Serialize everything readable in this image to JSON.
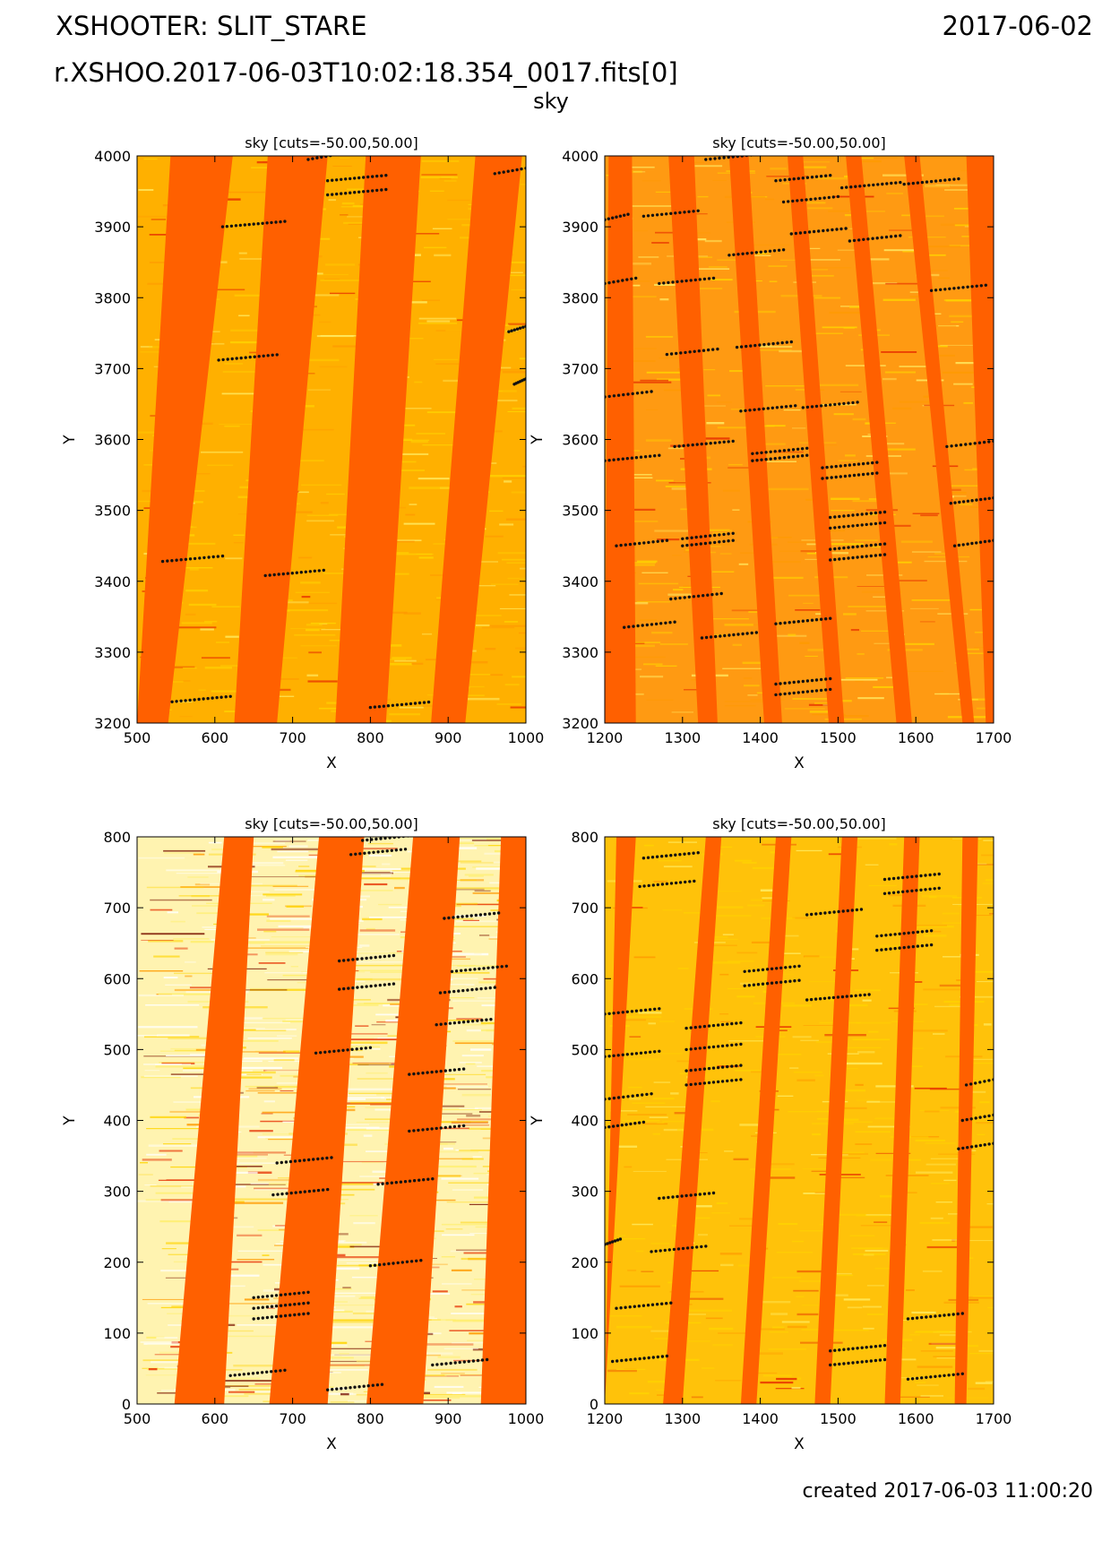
{
  "header": {
    "instrument": "XSHOOTER: SLIT_STARE",
    "date": "2017-06-02",
    "filename": "r.XSHOO.2017-06-03T10:02:18.354_0017.fits[0]",
    "subtitle": "sky"
  },
  "footer": {
    "created": "created 2017-06-03 11:00:20"
  },
  "colors": {
    "order_band": "#ff6000",
    "bg_top": "#ffb000",
    "bg_top_right": "#ff9a12",
    "bg_bottom_left": "#fff3b0",
    "bg_bottom_right": "#ffc20a",
    "line_dots": "#111111",
    "noise": [
      "#ffd400",
      "#ffee66",
      "#ff9a00",
      "#e62e00",
      "#ffffff"
    ]
  },
  "chart_data": [
    {
      "type": "heatmap",
      "title": "sky [cuts=-50.00,50.00]",
      "xlabel": "X",
      "ylabel": "Y",
      "xlim": [
        500,
        1000
      ],
      "ylim": [
        3200,
        4000
      ],
      "xticks": [
        "500",
        "600",
        "700",
        "800",
        "900",
        "1000"
      ],
      "yticks": [
        "3200",
        "3300",
        "3400",
        "3500",
        "3600",
        "3700",
        "3800",
        "3900",
        "4000"
      ],
      "cuts": [
        -50.0,
        50.0
      ],
      "order_bands": [
        {
          "x_top": [
            543,
            623
          ],
          "x_bottom": [
            500,
            540
          ]
        },
        {
          "x_top": [
            668,
            745
          ],
          "x_bottom": [
            625,
            680
          ]
        },
        {
          "x_top": [
            794,
            865
          ],
          "x_bottom": [
            755,
            820
          ]
        },
        {
          "x_top": [
            935,
            995
          ],
          "x_bottom": [
            878,
            922
          ]
        }
      ],
      "lines": [
        {
          "y": 3230,
          "x": [
            545,
            620
          ]
        },
        {
          "y": 3428,
          "x": [
            533,
            610
          ]
        },
        {
          "y": 3408,
          "x": [
            665,
            740
          ]
        },
        {
          "y": 3222,
          "x": [
            800,
            875
          ]
        },
        {
          "y": 3712,
          "x": [
            605,
            680
          ]
        },
        {
          "y": 3900,
          "x": [
            610,
            690
          ]
        },
        {
          "y": 3945,
          "x": [
            745,
            820
          ]
        },
        {
          "y": 3965,
          "x": [
            745,
            820
          ]
        },
        {
          "y": 3995,
          "x": [
            720,
            760
          ]
        },
        {
          "y": 3975,
          "x": [
            960,
            1000
          ]
        },
        {
          "y": 3752,
          "x": [
            978,
            1000
          ]
        },
        {
          "y": 3678,
          "x": [
            985,
            1000
          ]
        }
      ]
    },
    {
      "type": "heatmap",
      "title": "sky [cuts=-50.00,50.00]",
      "xlabel": "X",
      "ylabel": "Y",
      "xlim": [
        1200,
        1700
      ],
      "ylim": [
        3200,
        4000
      ],
      "xticks": [
        "1200",
        "1300",
        "1400",
        "1500",
        "1600",
        "1700"
      ],
      "yticks": [
        "3200",
        "3300",
        "3400",
        "3500",
        "3600",
        "3700",
        "3800",
        "3900",
        "4000"
      ],
      "cuts": [
        -50.0,
        50.0
      ],
      "order_bands": [
        {
          "x_top": [
            1205,
            1235
          ],
          "x_bottom": [
            1200,
            1240
          ]
        },
        {
          "x_top": [
            1282,
            1315
          ],
          "x_bottom": [
            1320,
            1345
          ]
        },
        {
          "x_top": [
            1360,
            1385
          ],
          "x_bottom": [
            1405,
            1428
          ]
        },
        {
          "x_top": [
            1435,
            1455
          ],
          "x_bottom": [
            1488,
            1508
          ]
        },
        {
          "x_top": [
            1510,
            1530
          ],
          "x_bottom": [
            1575,
            1595
          ]
        },
        {
          "x_top": [
            1585,
            1605
          ],
          "x_bottom": [
            1660,
            1675
          ]
        },
        {
          "x_top": [
            1665,
            1700
          ],
          "x_bottom": [
            1690,
            1700
          ]
        }
      ],
      "lines": [
        {
          "y": 3910,
          "x": [
            1200,
            1230
          ]
        },
        {
          "y": 3915,
          "x": [
            1250,
            1320
          ]
        },
        {
          "y": 3995,
          "x": [
            1330,
            1400
          ]
        },
        {
          "y": 3965,
          "x": [
            1420,
            1490
          ]
        },
        {
          "y": 3935,
          "x": [
            1430,
            1500
          ]
        },
        {
          "y": 3955,
          "x": [
            1505,
            1580
          ]
        },
        {
          "y": 3890,
          "x": [
            1440,
            1510
          ]
        },
        {
          "y": 3880,
          "x": [
            1515,
            1580
          ]
        },
        {
          "y": 3960,
          "x": [
            1585,
            1655
          ]
        },
        {
          "y": 3820,
          "x": [
            1200,
            1240
          ]
        },
        {
          "y": 3820,
          "x": [
            1270,
            1340
          ]
        },
        {
          "y": 3860,
          "x": [
            1360,
            1430
          ]
        },
        {
          "y": 3810,
          "x": [
            1620,
            1690
          ]
        },
        {
          "y": 3730,
          "x": [
            1370,
            1440
          ]
        },
        {
          "y": 3720,
          "x": [
            1280,
            1345
          ]
        },
        {
          "y": 3660,
          "x": [
            1200,
            1260
          ]
        },
        {
          "y": 3640,
          "x": [
            1375,
            1445
          ]
        },
        {
          "y": 3645,
          "x": [
            1455,
            1525
          ]
        },
        {
          "y": 3590,
          "x": [
            1290,
            1365
          ]
        },
        {
          "y": 3570,
          "x": [
            1200,
            1270
          ]
        },
        {
          "y": 3580,
          "x": [
            1390,
            1460
          ]
        },
        {
          "y": 3570,
          "x": [
            1390,
            1460
          ]
        },
        {
          "y": 3560,
          "x": [
            1480,
            1550
          ]
        },
        {
          "y": 3545,
          "x": [
            1480,
            1550
          ]
        },
        {
          "y": 3590,
          "x": [
            1640,
            1700
          ]
        },
        {
          "y": 3510,
          "x": [
            1645,
            1700
          ]
        },
        {
          "y": 3460,
          "x": [
            1300,
            1365
          ]
        },
        {
          "y": 3450,
          "x": [
            1300,
            1365
          ]
        },
        {
          "y": 3450,
          "x": [
            1215,
            1280
          ]
        },
        {
          "y": 3490,
          "x": [
            1490,
            1560
          ]
        },
        {
          "y": 3475,
          "x": [
            1490,
            1560
          ]
        },
        {
          "y": 3445,
          "x": [
            1490,
            1560
          ]
        },
        {
          "y": 3430,
          "x": [
            1490,
            1560
          ]
        },
        {
          "y": 3450,
          "x": [
            1650,
            1700
          ]
        },
        {
          "y": 3375,
          "x": [
            1285,
            1350
          ]
        },
        {
          "y": 3335,
          "x": [
            1225,
            1290
          ]
        },
        {
          "y": 3320,
          "x": [
            1325,
            1395
          ]
        },
        {
          "y": 3340,
          "x": [
            1420,
            1490
          ]
        },
        {
          "y": 3255,
          "x": [
            1420,
            1490
          ]
        },
        {
          "y": 3240,
          "x": [
            1420,
            1490
          ]
        }
      ]
    },
    {
      "type": "heatmap",
      "title": "sky [cuts=-50.00,50.00]",
      "xlabel": "X",
      "ylabel": "Y",
      "xlim": [
        500,
        1000
      ],
      "ylim": [
        0,
        800
      ],
      "xticks": [
        "500",
        "600",
        "700",
        "800",
        "900",
        "1000"
      ],
      "yticks": [
        "0",
        "100",
        "200",
        "300",
        "400",
        "500",
        "600",
        "700",
        "800"
      ],
      "cuts": [
        -50.0,
        50.0
      ],
      "order_bands": [
        {
          "x_top": [
            612,
            650
          ],
          "x_bottom": [
            548,
            612
          ]
        },
        {
          "x_top": [
            734,
            792
          ],
          "x_bottom": [
            670,
            745
          ]
        },
        {
          "x_top": [
            855,
            915
          ],
          "x_bottom": [
            795,
            868
          ]
        },
        {
          "x_top": [
            968,
            1000
          ],
          "x_bottom": [
            942,
            1000
          ]
        }
      ],
      "lines": [
        {
          "y": 795,
          "x": [
            790,
            860
          ]
        },
        {
          "y": 775,
          "x": [
            775,
            845
          ]
        },
        {
          "y": 685,
          "x": [
            895,
            965
          ]
        },
        {
          "y": 625,
          "x": [
            760,
            830
          ]
        },
        {
          "y": 610,
          "x": [
            905,
            975
          ]
        },
        {
          "y": 585,
          "x": [
            760,
            830
          ]
        },
        {
          "y": 580,
          "x": [
            890,
            960
          ]
        },
        {
          "y": 535,
          "x": [
            885,
            955
          ]
        },
        {
          "y": 495,
          "x": [
            730,
            800
          ]
        },
        {
          "y": 465,
          "x": [
            850,
            920
          ]
        },
        {
          "y": 385,
          "x": [
            850,
            920
          ]
        },
        {
          "y": 340,
          "x": [
            680,
            750
          ]
        },
        {
          "y": 310,
          "x": [
            810,
            880
          ]
        },
        {
          "y": 295,
          "x": [
            675,
            745
          ]
        },
        {
          "y": 195,
          "x": [
            800,
            865
          ]
        },
        {
          "y": 150,
          "x": [
            650,
            720
          ]
        },
        {
          "y": 135,
          "x": [
            650,
            720
          ]
        },
        {
          "y": 120,
          "x": [
            650,
            720
          ]
        },
        {
          "y": 55,
          "x": [
            880,
            950
          ]
        },
        {
          "y": 40,
          "x": [
            620,
            690
          ]
        },
        {
          "y": 20,
          "x": [
            745,
            815
          ]
        }
      ]
    },
    {
      "type": "heatmap",
      "title": "sky [cuts=-50.00,50.00]",
      "xlabel": "X",
      "ylabel": "Y",
      "xlim": [
        1200,
        1700
      ],
      "ylim": [
        0,
        800
      ],
      "xticks": [
        "1200",
        "1300",
        "1400",
        "1500",
        "1600",
        "1700"
      ],
      "yticks": [
        "0",
        "100",
        "200",
        "300",
        "400",
        "500",
        "600",
        "700",
        "800"
      ],
      "cuts": [
        -50.0,
        50.0
      ],
      "order_bands": [
        {
          "x_top": [
            1215,
            1240
          ],
          "x_bottom": [
            1200,
            1200
          ]
        },
        {
          "x_top": [
            1330,
            1350
          ],
          "x_bottom": [
            1275,
            1300
          ]
        },
        {
          "x_top": [
            1420,
            1440
          ],
          "x_bottom": [
            1375,
            1395
          ]
        },
        {
          "x_top": [
            1505,
            1525
          ],
          "x_bottom": [
            1470,
            1490
          ]
        },
        {
          "x_top": [
            1585,
            1605
          ],
          "x_bottom": [
            1560,
            1580
          ]
        },
        {
          "x_top": [
            1660,
            1680
          ],
          "x_bottom": [
            1650,
            1665
          ]
        }
      ],
      "lines": [
        {
          "y": 770,
          "x": [
            1250,
            1320
          ]
        },
        {
          "y": 730,
          "x": [
            1245,
            1315
          ]
        },
        {
          "y": 740,
          "x": [
            1560,
            1630
          ]
        },
        {
          "y": 720,
          "x": [
            1560,
            1630
          ]
        },
        {
          "y": 690,
          "x": [
            1460,
            1530
          ]
        },
        {
          "y": 660,
          "x": [
            1550,
            1620
          ]
        },
        {
          "y": 640,
          "x": [
            1550,
            1620
          ]
        },
        {
          "y": 610,
          "x": [
            1380,
            1450
          ]
        },
        {
          "y": 590,
          "x": [
            1380,
            1450
          ]
        },
        {
          "y": 570,
          "x": [
            1460,
            1540
          ]
        },
        {
          "y": 550,
          "x": [
            1200,
            1270
          ]
        },
        {
          "y": 530,
          "x": [
            1305,
            1375
          ]
        },
        {
          "y": 500,
          "x": [
            1305,
            1375
          ]
        },
        {
          "y": 470,
          "x": [
            1305,
            1375
          ]
        },
        {
          "y": 450,
          "x": [
            1305,
            1375
          ]
        },
        {
          "y": 490,
          "x": [
            1200,
            1270
          ]
        },
        {
          "y": 430,
          "x": [
            1200,
            1260
          ]
        },
        {
          "y": 390,
          "x": [
            1200,
            1250
          ]
        },
        {
          "y": 450,
          "x": [
            1665,
            1700
          ]
        },
        {
          "y": 400,
          "x": [
            1660,
            1700
          ]
        },
        {
          "y": 360,
          "x": [
            1655,
            1700
          ]
        },
        {
          "y": 290,
          "x": [
            1270,
            1340
          ]
        },
        {
          "y": 225,
          "x": [
            1200,
            1220
          ]
        },
        {
          "y": 215,
          "x": [
            1260,
            1330
          ]
        },
        {
          "y": 135,
          "x": [
            1215,
            1285
          ]
        },
        {
          "y": 120,
          "x": [
            1590,
            1660
          ]
        },
        {
          "y": 75,
          "x": [
            1490,
            1560
          ]
        },
        {
          "y": 55,
          "x": [
            1490,
            1560
          ]
        },
        {
          "y": 60,
          "x": [
            1210,
            1280
          ]
        },
        {
          "y": 35,
          "x": [
            1590,
            1660
          ]
        }
      ]
    }
  ]
}
